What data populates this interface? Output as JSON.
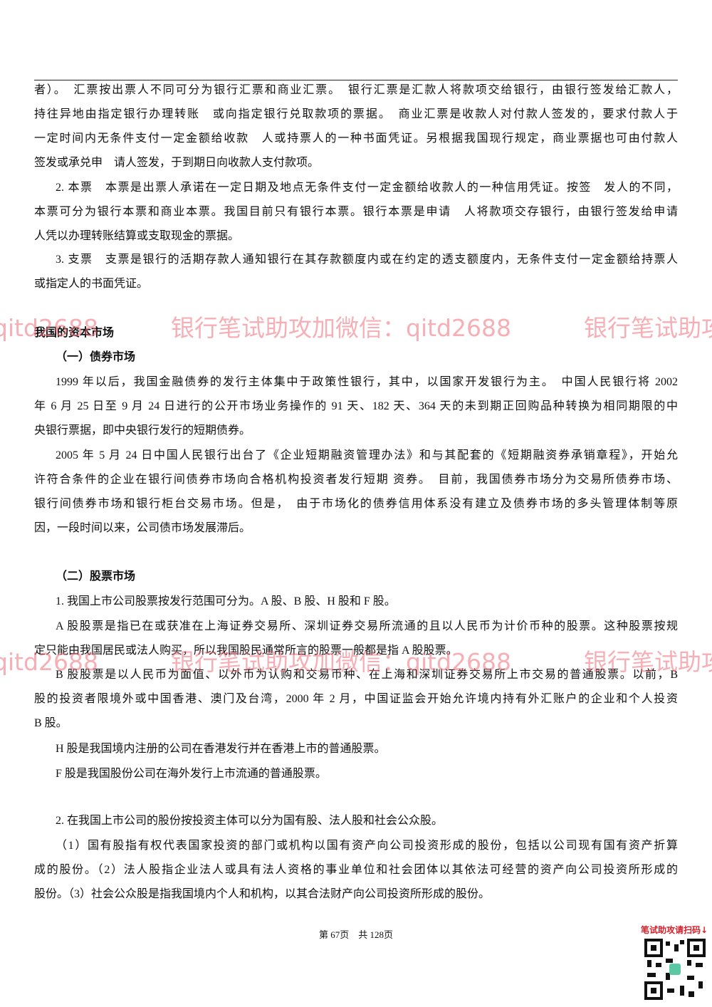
{
  "watermark": "银行笔试助攻加微信：qitd2688",
  "paragraphs": [
    {
      "lines": [
        "者）。　汇票按出票人不同可分为银行汇票和商业汇票。　银行汇票是汇款人将款项交给银行，由银行签发给汇款人，",
        "持往异地由指定银行办理转账　或向指定银行兑取款项的票据。　商业汇票是收款人对付款人签发的，要求付款人于",
        "一定时间内无条件支付一定金额给收款　人或持票人的一种书面凭证。另根据我国现行规定，商业票据也可由付款人",
        "签发或承兑申　请人签发，于到期日向收款人支付款项。"
      ]
    },
    {
      "lines": [
        "2. 本票　本票是出票人承诺在一定日期及地点无条件支付一定金额给收款人的一种信用凭证。按签　发人的不同，",
        "本票可分为银行本票和商业本票。我国目前只有银行本票。银行本票是申请　人将款项交存银行，由银行签发给申请",
        "人凭以办理转账结算或支取现金的票据。"
      ]
    },
    {
      "lines": [
        "3. 支票　支票是银行的活期存款人通知银行在其存款额度内或在约定的透支额度内，无条件支付一定金额给持票人",
        "或指定人的书面凭证。"
      ]
    },
    {
      "lines": [
        "我国的资本市场"
      ]
    },
    {
      "lines": [
        "（一）债券市场"
      ]
    },
    {
      "lines": [
        "1999 年以后，我国金融债券的发行主体集中于政策性银行，其中，以国家开发银行为主。　中国人民银行将 2002",
        "年 6 月 25 日至 9 月 24 日进行的公开市场业务操作的 91 天、182 天、364 天的未到期正回购品种转换为相同期限的中",
        "央银行票据，即中央银行发行的短期债券。"
      ]
    },
    {
      "lines": [
        "2005 年 5 月 24 日中国人民银行出台了《企业短期融资管理办法》和与其配套的《短期融资券承销章程》，开始允",
        "许符合条件的企业在银行间债券市场向合格机构投资者发行短期 资券。　目前，我国债券市场分为交易所债券市场、",
        "银行间债券市场和银行柜台交易市场。但是，　由于市场化的债券信用体系没有建立及债券市场的多头管理体制等原",
        "因，一段时间以来，公司债市场发展滞后。"
      ]
    },
    {
      "lines": [
        "（二）股票市场"
      ]
    },
    {
      "lines": [
        "1. 我国上市公司股票按发行范围可分为。A 股、B 股、H 股和 F 股。"
      ]
    },
    {
      "lines": [
        "A 股股票是指已在或获准在上海证券交易所、深圳证券交易所流通的且以人民币为计价币种的股票。这种股票按规",
        "定只能由我国居民或法人购买，所以我国股民通常所言的股票一般都是指 A 股股票。"
      ]
    },
    {
      "lines": [
        "B 股股票是以人民币为面值、以外币为认购和交易币种、在上海和深圳证券交易所上市交易的普通股票。以前，B",
        "股的投资者限境外或中国香港、澳门及台湾，2000 年 2 月，中国证监会开始允许境内持有外汇账户的企业和个人投资",
        "B 股。"
      ]
    },
    {
      "lines": [
        "H 股是我国境内注册的公司在香港发行并在香港上市的普通股票。"
      ]
    },
    {
      "lines": [
        "F 股是我国股份公司在海外发行上市流通的普通股票。"
      ]
    },
    {
      "lines": [
        "2. 在我国上市公司的股份按投资主体可以分为国有股、法人股和社会公众股。"
      ]
    },
    {
      "lines": [
        "（1）国有股指有权代表国家投资的部门或机构以国有资产向公司投资形成的股份，包括以公司现有国有资产折算",
        "成的股份。（2）法人股指企业法人或具有法人资格的事业单位和社会团体以其依法可经营的资产向公司投资所形成的",
        "股份。（3）社会公众股是指我国境内个人和机构，以其合法财产向公司投资所形成的股份。"
      ]
    }
  ],
  "footer": "第 67页　共 128页",
  "qr_label": "笔试助攻请扫码↓"
}
